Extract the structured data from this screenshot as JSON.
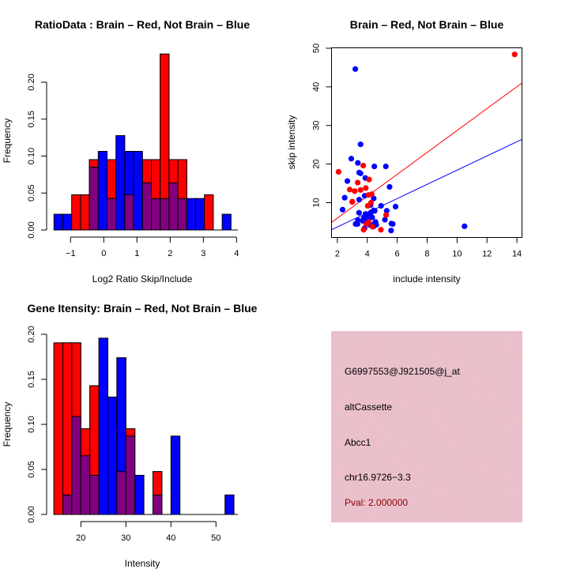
{
  "colors": {
    "brain": "#ff0000",
    "not_brain": "#0000ff",
    "overlap": "#800080",
    "info_background": "#ecc0cb",
    "pval_text": "#8b0000"
  },
  "chart_data": [
    {
      "id": "ratio-hist",
      "type": "bar",
      "subtype": "overlaid-histogram",
      "title": "RatioData : Brain – Red, Not Brain – Blue",
      "xlabel": "Log2 Ratio Skip/Include",
      "ylabel": "Frequency",
      "xlim": [
        -1.52,
        4.0
      ],
      "ylim": [
        0,
        0.2
      ],
      "xticks": [
        -1,
        0,
        1,
        2,
        3,
        4
      ],
      "xtick_labels": [
        "−1",
        "0",
        "1",
        "2",
        "3",
        "4"
      ],
      "yticks": [
        0.0,
        0.05,
        0.1,
        0.15,
        0.2
      ],
      "ytick_labels": [
        "0.00",
        "0.05",
        "0.10",
        "0.15",
        "0.20"
      ],
      "bin_start": -1.5,
      "bin_width": 0.2667,
      "series": [
        {
          "name": "Brain",
          "color": "red",
          "values": [
            0,
            0,
            0.0476,
            0.0476,
            0.0952,
            0,
            0.0952,
            0,
            0.0476,
            0,
            0.0952,
            0.0952,
            0.2381,
            0.0952,
            0.0952,
            0,
            0,
            0.0476,
            0,
            0
          ]
        },
        {
          "name": "Not Brain",
          "color": "blue",
          "values": [
            0.0213,
            0.0213,
            0,
            0,
            0.0851,
            0.1064,
            0.0426,
            0.1277,
            0.1064,
            0.1064,
            0.0638,
            0.0426,
            0.0426,
            0.0638,
            0.0426,
            0.0426,
            0.0426,
            0,
            0,
            0.0213
          ]
        }
      ],
      "legend": "none",
      "grid": false
    },
    {
      "id": "intensity-scatter",
      "type": "scatter",
      "title": "Brain – Red, Not Brain – Blue",
      "xlabel": "include intensity",
      "ylabel": "skip intensity",
      "xlim": [
        1.61,
        14.34
      ],
      "ylim": [
        1.0,
        50.1
      ],
      "xticks": [
        2,
        4,
        6,
        8,
        10,
        12,
        14
      ],
      "xtick_labels": [
        "2",
        "4",
        "6",
        "8",
        "10",
        "12",
        "14"
      ],
      "yticks": [
        10,
        20,
        30,
        40,
        50
      ],
      "ytick_labels": [
        "10",
        "20",
        "30",
        "40",
        "50"
      ],
      "series": [
        {
          "name": "Brain",
          "color": "red",
          "points": [
            [
              2.08,
              18.0
            ],
            [
              3.73,
              19.6
            ],
            [
              4.12,
              16.0
            ],
            [
              3.36,
              15.2
            ],
            [
              2.83,
              13.4
            ],
            [
              3.16,
              13.0
            ],
            [
              3.55,
              13.3
            ],
            [
              3.9,
              13.8
            ],
            [
              4.29,
              12.2
            ],
            [
              4.08,
              12.0
            ],
            [
              2.99,
              10.2
            ],
            [
              4.03,
              9.2
            ],
            [
              5.26,
              6.8
            ],
            [
              4.35,
              3.8
            ],
            [
              4.91,
              3.0
            ],
            [
              3.76,
              3.0
            ],
            [
              3.95,
              4.5
            ],
            [
              4.25,
              10.0
            ],
            [
              4.1,
              5.0
            ],
            [
              13.85,
              48.4
            ],
            [
              3.0,
              10.3
            ]
          ],
          "fit_line": [
            [
              1.61,
              4.9
            ],
            [
              14.34,
              41.0
            ]
          ]
        },
        {
          "name": "Not Brain",
          "color": "blue",
          "points": [
            [
              3.2,
              44.6
            ],
            [
              3.55,
              25.1
            ],
            [
              2.93,
              21.4
            ],
            [
              3.37,
              20.3
            ],
            [
              4.47,
              19.4
            ],
            [
              5.24,
              19.4
            ],
            [
              3.46,
              17.8
            ],
            [
              3.55,
              17.6
            ],
            [
              3.87,
              16.4
            ],
            [
              2.67,
              15.6
            ],
            [
              5.49,
              14.1
            ],
            [
              2.49,
              11.3
            ],
            [
              3.46,
              10.8
            ],
            [
              3.83,
              11.8
            ],
            [
              4.43,
              11.1
            ],
            [
              4.92,
              9.2
            ],
            [
              5.89,
              9.0
            ],
            [
              4.22,
              9.4
            ],
            [
              2.35,
              8.2
            ],
            [
              5.3,
              7.9
            ],
            [
              3.45,
              7.4
            ],
            [
              3.88,
              7.1
            ],
            [
              4.43,
              8.0
            ],
            [
              4.5,
              7.9
            ],
            [
              5.18,
              5.6
            ],
            [
              4.33,
              6.2
            ],
            [
              3.76,
              6.0
            ],
            [
              3.94,
              4.8
            ],
            [
              3.22,
              4.5
            ],
            [
              3.35,
              4.5
            ],
            [
              4.5,
              4.7
            ],
            [
              5.61,
              4.6
            ],
            [
              5.7,
              4.5
            ],
            [
              4.4,
              3.8
            ],
            [
              3.82,
              3.4
            ],
            [
              5.59,
              2.8
            ],
            [
              3.37,
              5.5
            ],
            [
              4.05,
              7.0
            ],
            [
              4.25,
              7.5
            ],
            [
              4.6,
              4.3
            ],
            [
              4.2,
              4.2
            ],
            [
              4.0,
              5.8
            ],
            [
              3.7,
              5.3
            ],
            [
              4.55,
              5.0
            ],
            [
              3.92,
              6.5
            ],
            [
              10.5,
              3.9
            ]
          ],
          "fit_line": [
            [
              1.61,
              3.0
            ],
            [
              14.34,
              26.4
            ]
          ]
        }
      ],
      "legend": "none",
      "grid": false
    },
    {
      "id": "gene-hist",
      "type": "bar",
      "subtype": "overlaid-histogram",
      "title": "Gene Itensity: Brain – Red, Not Brain – Blue",
      "xlabel": "Intensity",
      "ylabel": "Frequency",
      "xlim": [
        14,
        54
      ],
      "ylim": [
        0,
        0.2
      ],
      "xticks": [
        20,
        30,
        40,
        50
      ],
      "xtick_labels": [
        "20",
        "30",
        "40",
        "50"
      ],
      "yticks": [
        0.0,
        0.05,
        0.1,
        0.15,
        0.2
      ],
      "ytick_labels": [
        "0.00",
        "0.05",
        "0.10",
        "0.15",
        "0.20"
      ],
      "bin_start": 14,
      "bin_width": 2,
      "series": [
        {
          "name": "Brain",
          "color": "red",
          "values": [
            0.1905,
            0.1905,
            0.1905,
            0.0952,
            0.1429,
            0,
            0,
            0.0476,
            0.0952,
            0,
            0,
            0.0476,
            0,
            0,
            0,
            0,
            0,
            0,
            0,
            0
          ]
        },
        {
          "name": "Not Brain",
          "color": "blue",
          "values": [
            0,
            0.0217,
            0.1087,
            0.0652,
            0.0435,
            0.1957,
            0.1304,
            0.1739,
            0.087,
            0.0435,
            0,
            0.0217,
            0,
            0.087,
            0,
            0,
            0,
            0,
            0,
            0.0217
          ]
        }
      ],
      "legend": "none",
      "grid": false
    }
  ],
  "info_panel": {
    "probe_id": "G6997553@J921505@j_at",
    "event_type": "altCassette",
    "gene": "Abcc1",
    "location": "chr16.9726−3.3",
    "pval": "Pval: 2.000000"
  }
}
